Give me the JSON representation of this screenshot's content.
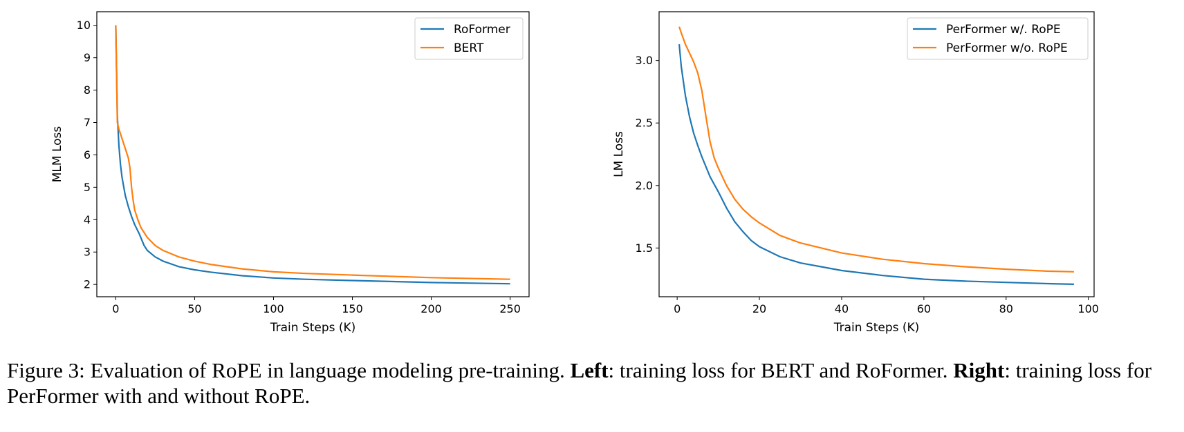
{
  "chart_data": [
    {
      "type": "line",
      "xlabel": "Train Steps (K)",
      "ylabel": "MLM Loss",
      "xlim": [
        -12,
        262
      ],
      "ylim": [
        1.62,
        10.42
      ],
      "xticks": [
        0,
        50,
        100,
        150,
        200,
        250
      ],
      "yticks": [
        2,
        3,
        4,
        5,
        6,
        7,
        8,
        9,
        10
      ],
      "legend_position": "top-right",
      "series": [
        {
          "name": "RoFormer",
          "color": "#1f77b4",
          "x": [
            0,
            1,
            2,
            3,
            4,
            6,
            8,
            10,
            12,
            15,
            18,
            20,
            25,
            30,
            40,
            50,
            60,
            80,
            100,
            120,
            150,
            200,
            250
          ],
          "y": [
            10.0,
            7.2,
            6.3,
            5.7,
            5.3,
            4.75,
            4.4,
            4.1,
            3.85,
            3.55,
            3.2,
            3.05,
            2.85,
            2.72,
            2.55,
            2.45,
            2.38,
            2.27,
            2.2,
            2.16,
            2.12,
            2.06,
            2.02
          ]
        },
        {
          "name": "BERT",
          "color": "#ff7f0e",
          "x": [
            0,
            1,
            2,
            4,
            6,
            8,
            9,
            10,
            11,
            12,
            14,
            16,
            20,
            25,
            30,
            40,
            50,
            60,
            80,
            100,
            120,
            150,
            200,
            250
          ],
          "y": [
            10.0,
            7.0,
            6.8,
            6.5,
            6.2,
            5.9,
            5.6,
            5.0,
            4.6,
            4.3,
            4.0,
            3.75,
            3.45,
            3.2,
            3.05,
            2.85,
            2.72,
            2.62,
            2.48,
            2.39,
            2.34,
            2.29,
            2.21,
            2.16
          ]
        }
      ]
    },
    {
      "type": "line",
      "xlabel": "Train Steps (K)",
      "ylabel": "LM Loss",
      "xlim": [
        -4.4,
        101.4
      ],
      "ylim": [
        1.11,
        3.39
      ],
      "xticks": [
        0,
        20,
        40,
        60,
        80,
        100
      ],
      "yticks": [
        1.5,
        2.0,
        2.5,
        3.0
      ],
      "legend_position": "top-right",
      "series": [
        {
          "name": "PerFormer w/. RoPE",
          "color": "#1f77b4",
          "x": [
            0.5,
            1,
            2,
            3,
            4,
            5,
            6,
            8,
            10,
            12,
            14,
            16,
            18,
            20,
            25,
            30,
            35,
            40,
            50,
            60,
            70,
            80,
            90,
            96.5
          ],
          "y": [
            3.13,
            2.95,
            2.72,
            2.55,
            2.42,
            2.32,
            2.23,
            2.07,
            1.95,
            1.82,
            1.71,
            1.63,
            1.56,
            1.51,
            1.43,
            1.38,
            1.35,
            1.32,
            1.28,
            1.25,
            1.235,
            1.225,
            1.215,
            1.21
          ]
        },
        {
          "name": "PerFormer w/o. RoPE",
          "color": "#ff7f0e",
          "x": [
            0.5,
            1,
            2,
            3,
            4,
            5,
            6,
            7,
            8,
            9,
            10,
            12,
            14,
            16,
            18,
            20,
            25,
            30,
            40,
            50,
            60,
            70,
            80,
            90,
            96.5
          ],
          "y": [
            3.27,
            3.22,
            3.13,
            3.06,
            2.99,
            2.9,
            2.76,
            2.55,
            2.35,
            2.22,
            2.14,
            2.0,
            1.89,
            1.81,
            1.75,
            1.7,
            1.6,
            1.54,
            1.46,
            1.41,
            1.375,
            1.35,
            1.33,
            1.315,
            1.31
          ]
        }
      ]
    }
  ],
  "caption": {
    "prefix": "Figure 3: Evaluation of RoPE in language modeling pre-training. ",
    "left_label": "Left",
    "left_text": ": training loss for BERT and RoFormer. ",
    "right_label": "Right",
    "right_text": ": training loss for PerFormer with and without RoPE."
  }
}
